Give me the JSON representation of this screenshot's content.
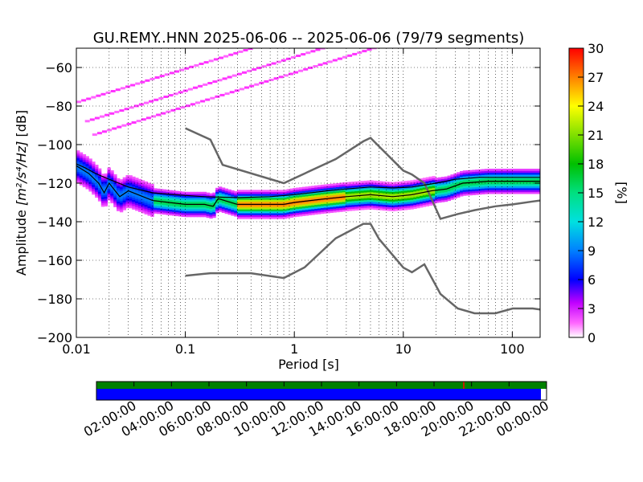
{
  "chart_data": {
    "type": "heatmap",
    "title": "GU.REMY..HNN   2025-06-06 -- 2025-06-06  (79/79 segments)",
    "xlabel": "Period [s]",
    "ylabel_prefix": "Amplitude ",
    "ylabel_units": "[m²/s⁴/Hz]",
    "ylabel_db": " [dB]",
    "x_scale": "log",
    "xlim": [
      0.01,
      180
    ],
    "ylim": [
      -200,
      -50
    ],
    "x_ticks": [
      "0.01",
      "0.1",
      "1",
      "10",
      "100"
    ],
    "x_tick_values": [
      0.01,
      0.1,
      1,
      10,
      100
    ],
    "y_ticks": [
      "−60",
      "−80",
      "−100",
      "−120",
      "−140",
      "−160",
      "−180",
      "−200"
    ],
    "y_tick_values": [
      -60,
      -80,
      -100,
      -120,
      -140,
      -160,
      -180,
      -200
    ],
    "grid": true,
    "colorbar": {
      "label": "[%]",
      "range": [
        0,
        30
      ],
      "ticks": [
        "0",
        "3",
        "6",
        "9",
        "12",
        "15",
        "18",
        "21",
        "24",
        "27",
        "30"
      ],
      "tick_values": [
        0,
        3,
        6,
        9,
        12,
        15,
        18,
        21,
        24,
        27,
        30
      ]
    },
    "noise_models": {
      "nhnm": [
        [
          0.1,
          -91.5
        ],
        [
          0.17,
          -97.4
        ],
        [
          0.22,
          -110.5
        ],
        [
          0.8,
          -120
        ],
        [
          2.4,
          -107.5
        ],
        [
          4.3,
          -98.3
        ],
        [
          5,
          -96.5
        ],
        [
          6,
          -101
        ],
        [
          10,
          -113.5
        ],
        [
          12,
          -115.5
        ],
        [
          15.6,
          -120
        ],
        [
          21.9,
          -138.5
        ],
        [
          31.6,
          -136
        ],
        [
          45,
          -134
        ],
        [
          70,
          -132
        ],
        [
          101,
          -131
        ],
        [
          154,
          -129.5
        ],
        [
          180,
          -129
        ]
      ],
      "nlnm": [
        [
          0.1,
          -168
        ],
        [
          0.17,
          -166.7
        ],
        [
          0.4,
          -166.7
        ],
        [
          0.8,
          -169.2
        ],
        [
          1.24,
          -163.7
        ],
        [
          2.4,
          -148.6
        ],
        [
          4.3,
          -141.1
        ],
        [
          5,
          -141.1
        ],
        [
          6,
          -149
        ],
        [
          10,
          -163.8
        ],
        [
          12,
          -166.2
        ],
        [
          15.6,
          -162.1
        ],
        [
          21.9,
          -177.5
        ],
        [
          31.6,
          -185
        ],
        [
          45,
          -187.5
        ],
        [
          70,
          -187.5
        ],
        [
          101,
          -185
        ],
        [
          154,
          -185
        ],
        [
          180,
          -185.5
        ]
      ]
    },
    "mean_curve": [
      [
        0.01,
        -110
      ],
      [
        0.012,
        -112
      ],
      [
        0.015,
        -115
      ],
      [
        0.02,
        -118
      ],
      [
        0.03,
        -122
      ],
      [
        0.05,
        -125
      ],
      [
        0.08,
        -126
      ],
      [
        0.15,
        -127
      ],
      [
        0.3,
        -127.5
      ],
      [
        0.6,
        -127
      ],
      [
        1,
        -126
      ],
      [
        2,
        -124
      ],
      [
        3,
        -123
      ],
      [
        5,
        -122
      ],
      [
        8,
        -122.5
      ],
      [
        12,
        -122
      ],
      [
        20,
        -120
      ],
      [
        30,
        -118
      ],
      [
        50,
        -117
      ],
      [
        100,
        -117
      ],
      [
        180,
        -117
      ]
    ],
    "mode_curve": [
      [
        0.01,
        -111
      ],
      [
        0.013,
        -115
      ],
      [
        0.016,
        -120
      ],
      [
        0.018,
        -125
      ],
      [
        0.02,
        -120
      ],
      [
        0.025,
        -127
      ],
      [
        0.03,
        -124
      ],
      [
        0.05,
        -129
      ],
      [
        0.1,
        -131
      ],
      [
        0.15,
        -131
      ],
      [
        0.18,
        -132
      ],
      [
        0.2,
        -128
      ],
      [
        0.3,
        -131
      ],
      [
        0.5,
        -131
      ],
      [
        0.8,
        -131
      ],
      [
        1,
        -130
      ],
      [
        2,
        -128
      ],
      [
        3,
        -127
      ],
      [
        5,
        -126
      ],
      [
        8,
        -127
      ],
      [
        12,
        -126
      ],
      [
        18,
        -124
      ],
      [
        25,
        -123
      ],
      [
        35,
        -120
      ],
      [
        60,
        -119
      ],
      [
        100,
        -119
      ],
      [
        180,
        -119
      ]
    ],
    "timeline": {
      "ticks": [
        "02:00:00",
        "04:00:00",
        "06:00:00",
        "08:00:00",
        "10:00:00",
        "12:00:00",
        "14:00:00",
        "16:00:00",
        "18:00:00",
        "20:00:00",
        "22:00:00",
        "00:00:00"
      ],
      "data_available_color": "#008000",
      "psd_available_color": "#0000ff",
      "gap_color": "#ff0000"
    }
  }
}
